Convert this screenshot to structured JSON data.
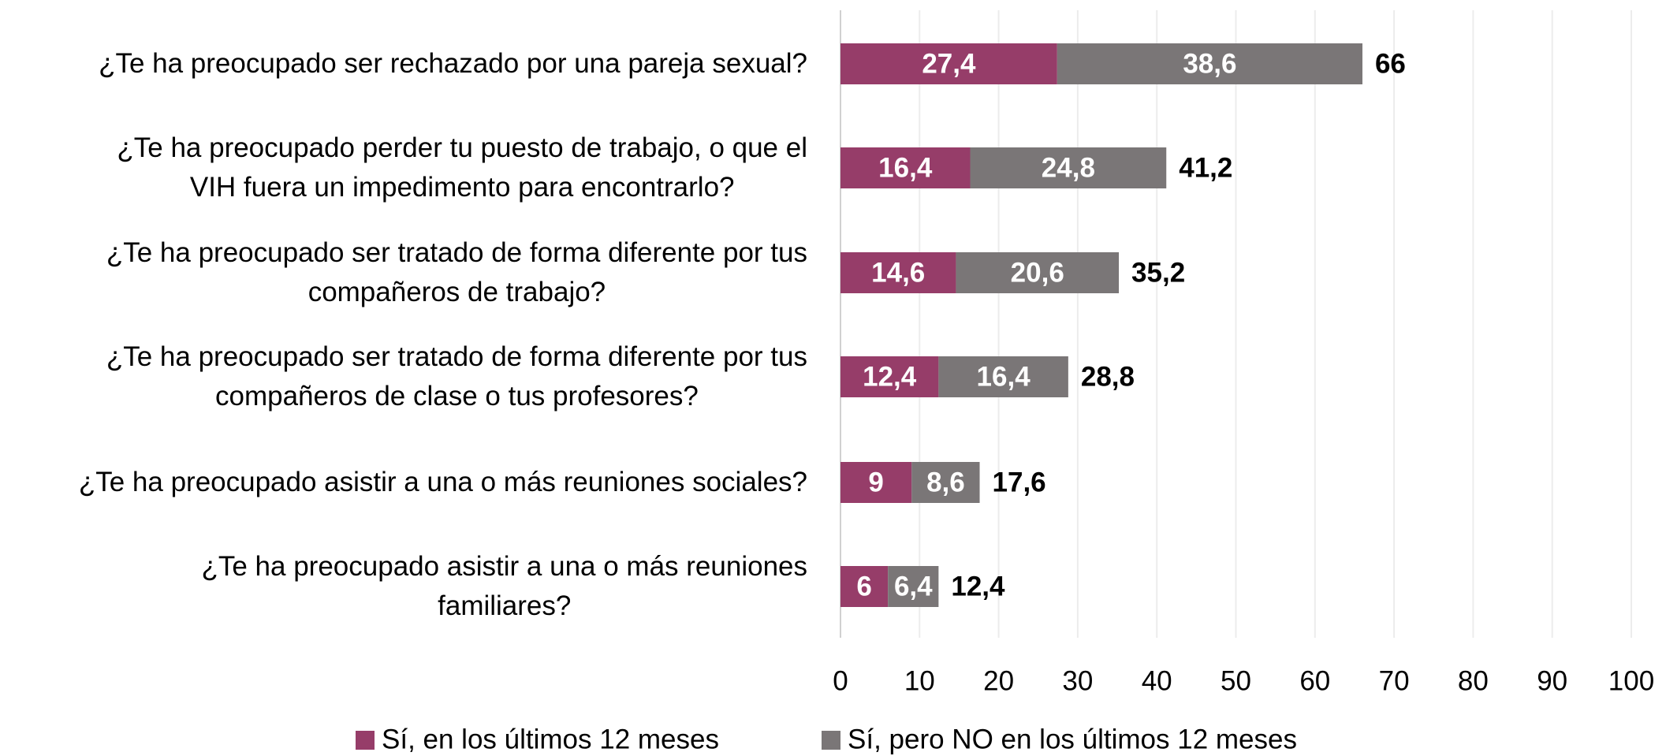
{
  "chart_data": {
    "type": "stacked-bar-horizontal",
    "categories": [
      "¿Te ha preocupado ser rechazado por una pareja sexual?",
      "¿Te ha preocupado perder tu puesto de trabajo, o que el\nVIH fuera un impedimento para encontrarlo?",
      "¿Te ha preocupado ser tratado de forma diferente por tus\ncompañeros de trabajo?",
      "¿Te ha preocupado ser tratado de forma diferente por tus\ncompañeros de clase o tus profesores?",
      "¿Te ha preocupado asistir a una o más reuniones sociales?",
      "¿Te ha preocupado asistir a una o más reuniones\nfamiliares?"
    ],
    "series": [
      {
        "name": "Sí, en los últimos 12 meses",
        "color": "#963d69",
        "values": [
          27.4,
          16.4,
          14.6,
          12.4,
          9,
          6
        ],
        "value_labels": [
          "27,4",
          "16,4",
          "14,6",
          "12,4",
          "9",
          "6"
        ]
      },
      {
        "name": "Sí, pero NO en los últimos 12 meses",
        "color": "#7a7677",
        "values": [
          38.6,
          24.8,
          20.6,
          16.4,
          8.6,
          6.4
        ],
        "value_labels": [
          "38,6",
          "24,8",
          "20,6",
          "16,4",
          "8,6",
          "6,4"
        ]
      }
    ],
    "totals": [
      66,
      41.2,
      35.2,
      28.8,
      17.6,
      12.4
    ],
    "total_labels": [
      "66",
      "41,2",
      "35,2",
      "28,8",
      "17,6",
      "12,4"
    ],
    "xlim": [
      0,
      100
    ],
    "xticks": [
      0,
      10,
      20,
      30,
      40,
      50,
      60,
      70,
      80,
      90,
      100
    ],
    "grid": true
  }
}
